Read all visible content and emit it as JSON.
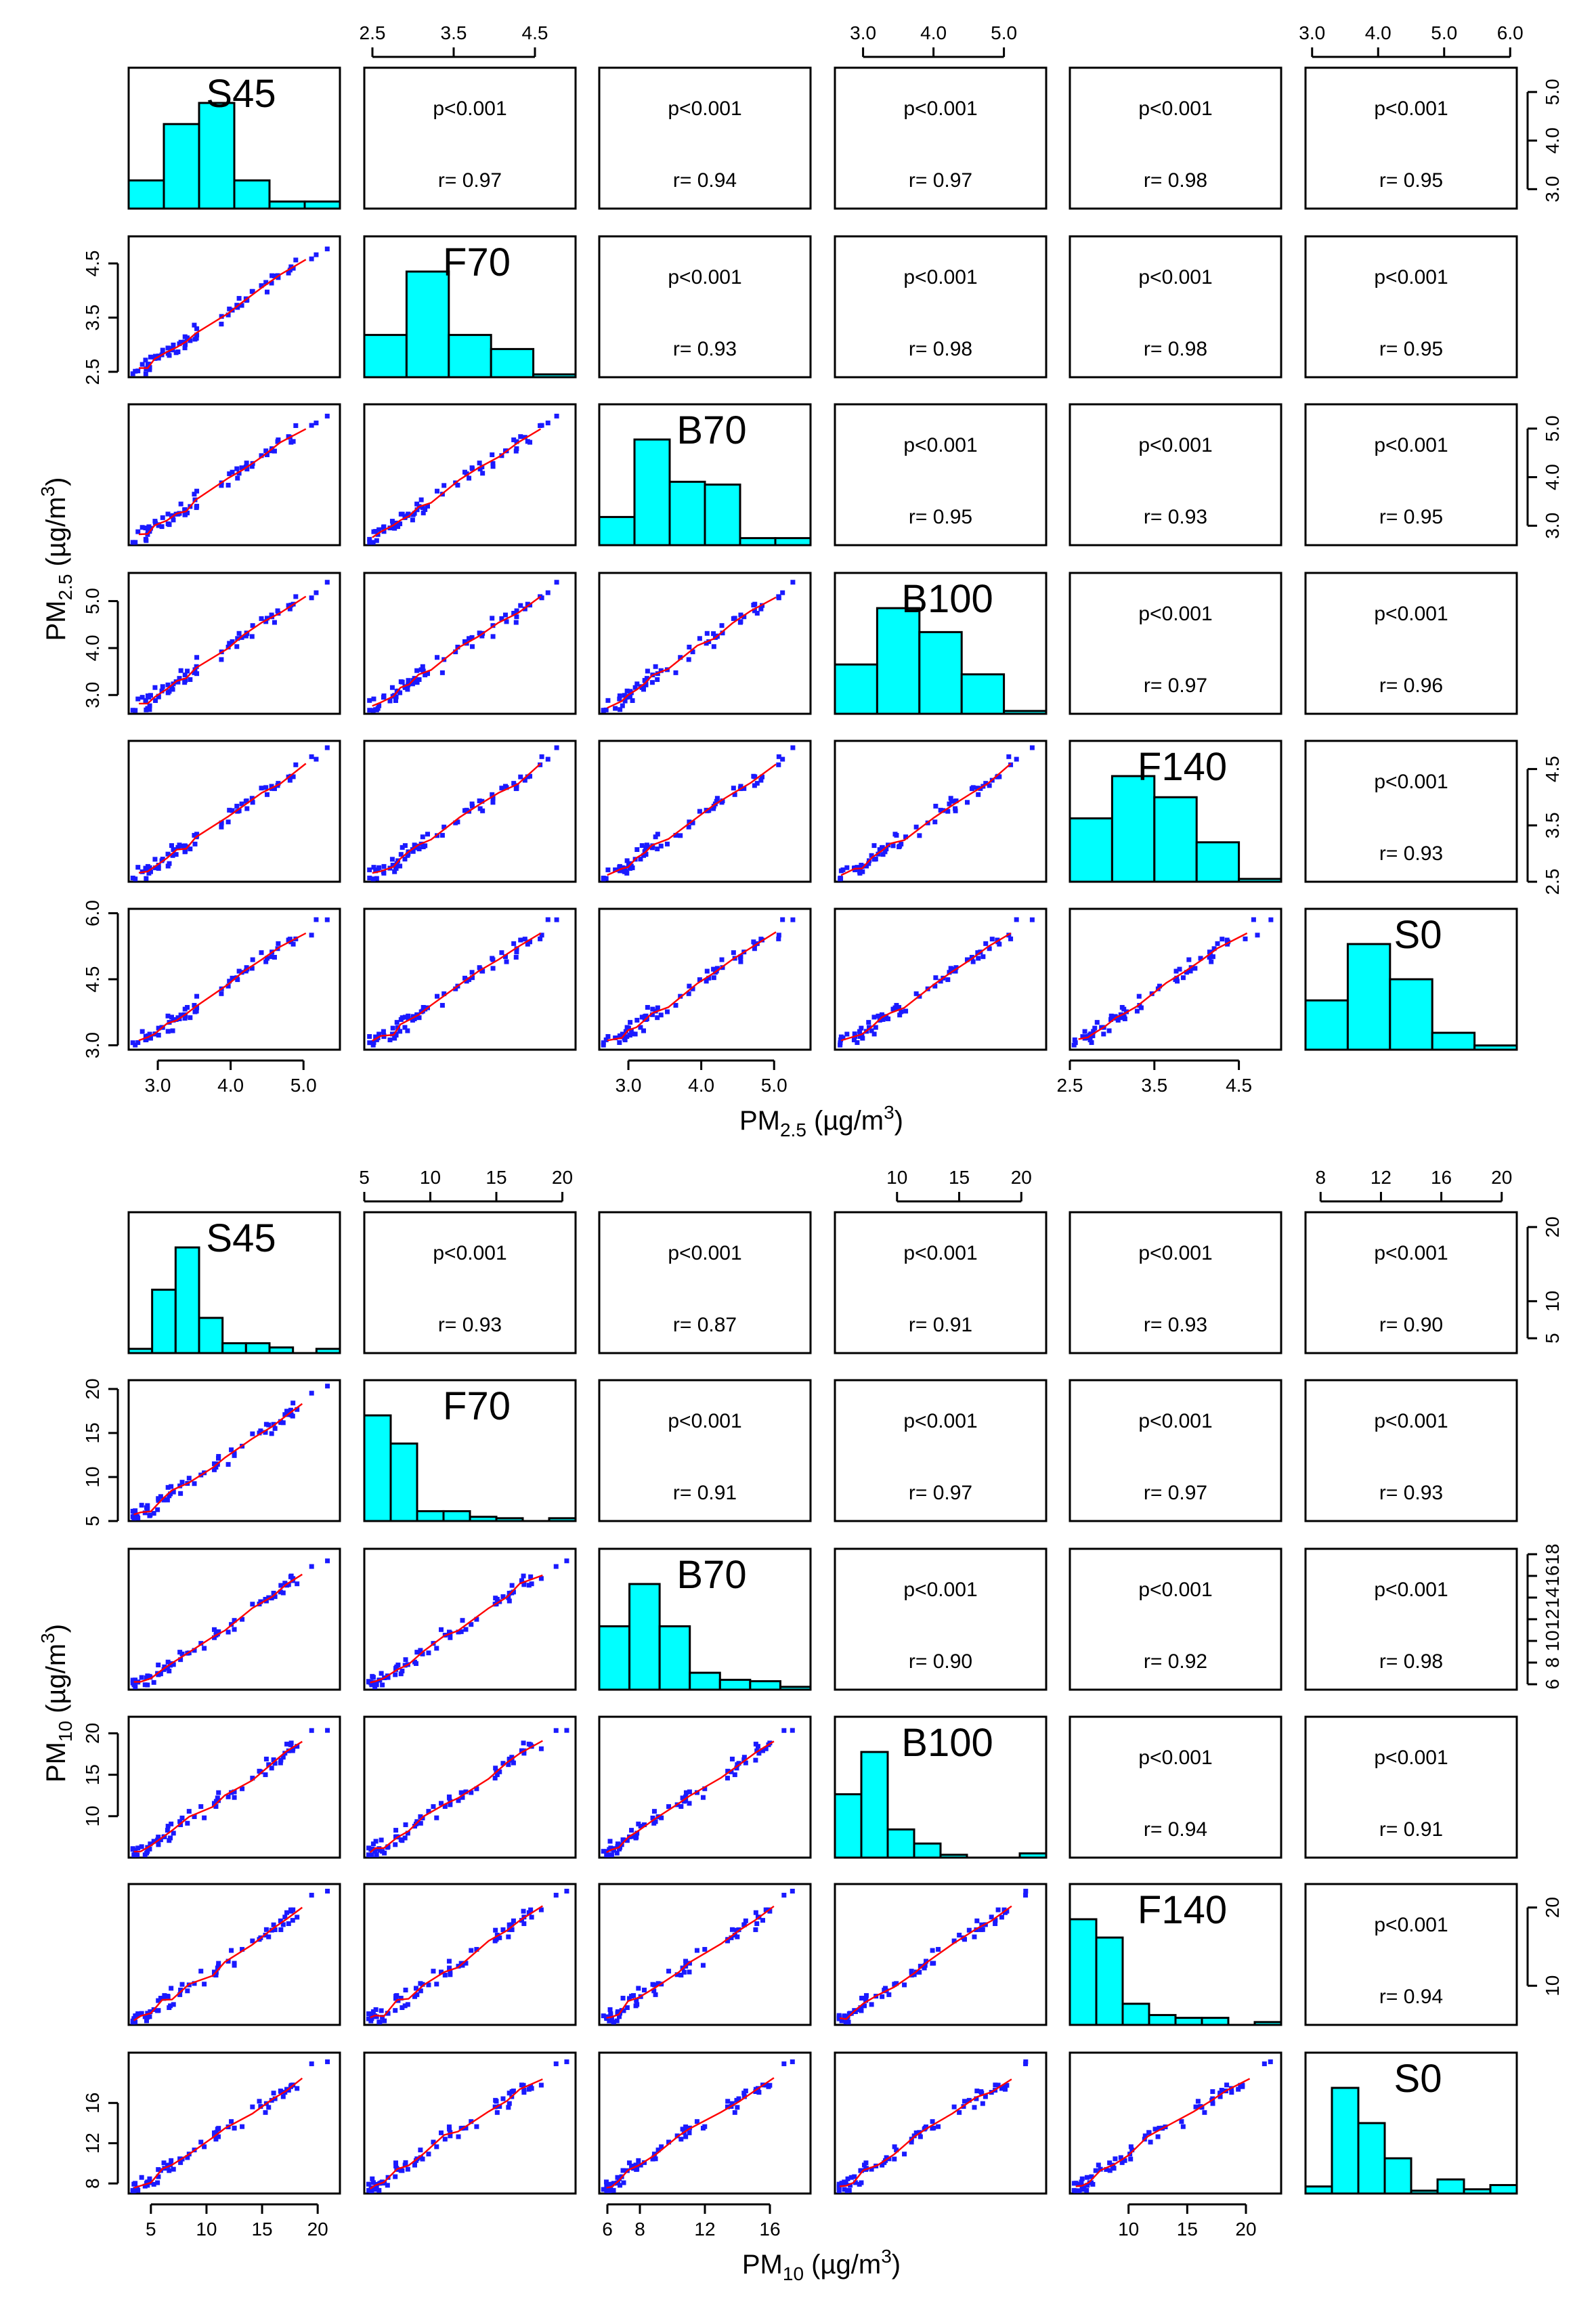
{
  "chart_data": [
    {
      "type": "scatter-matrix",
      "title": "",
      "variables": [
        "S45",
        "F70",
        "B70",
        "B100",
        "F140",
        "S0"
      ],
      "xlabel": "PM2.5 (µg/m3)",
      "ylabel": "PM2.5 (µg/m3)",
      "label_parts": {
        "base": "PM",
        "sub": "2.5",
        "units": "  (µg/m",
        "sup": "3",
        "close": ")"
      },
      "ranges": [
        [
          2.6,
          5.5
        ],
        [
          2.4,
          5.0
        ],
        [
          2.6,
          5.5
        ],
        [
          2.6,
          5.6
        ],
        [
          2.5,
          5.0
        ],
        [
          2.9,
          6.1
        ]
      ],
      "ticks": [
        [
          3.0,
          4.0,
          5.0
        ],
        [
          2.5,
          3.5,
          4.5
        ],
        [
          3.0,
          4.0,
          5.0
        ],
        [
          3.0,
          4.0,
          5.0
        ],
        [
          2.5,
          3.5,
          4.5
        ],
        [
          3.0,
          4.5,
          6.0
        ]
      ],
      "top_ticks": {
        "F70": [
          2.5,
          3.5,
          4.5
        ],
        "B100": [
          3.0,
          4.0,
          5.0
        ],
        "S0": [
          3.0,
          4.0,
          5.0,
          6.0
        ]
      },
      "p_text": "p<0.001",
      "correlations": [
        {
          "row": "S45",
          "col": "F70",
          "p": "p<0.001",
          "r": "r= 0.97"
        },
        {
          "row": "S45",
          "col": "B70",
          "p": "p<0.001",
          "r": "r= 0.94"
        },
        {
          "row": "S45",
          "col": "B100",
          "p": "p<0.001",
          "r": "r= 0.97"
        },
        {
          "row": "S45",
          "col": "F140",
          "p": "p<0.001",
          "r": "r= 0.98"
        },
        {
          "row": "S45",
          "col": "S0",
          "p": "p<0.001",
          "r": "r= 0.95"
        },
        {
          "row": "F70",
          "col": "B70",
          "p": "p<0.001",
          "r": "r= 0.93"
        },
        {
          "row": "F70",
          "col": "B100",
          "p": "p<0.001",
          "r": "r= 0.98"
        },
        {
          "row": "F70",
          "col": "F140",
          "p": "p<0.001",
          "r": "r= 0.98"
        },
        {
          "row": "F70",
          "col": "S0",
          "p": "p<0.001",
          "r": "r= 0.95"
        },
        {
          "row": "B70",
          "col": "B100",
          "p": "p<0.001",
          "r": "r= 0.95"
        },
        {
          "row": "B70",
          "col": "F140",
          "p": "p<0.001",
          "r": "r= 0.93"
        },
        {
          "row": "B70",
          "col": "S0",
          "p": "p<0.001",
          "r": "r= 0.95"
        },
        {
          "row": "B100",
          "col": "F140",
          "p": "p<0.001",
          "r": "r= 0.97"
        },
        {
          "row": "B100",
          "col": "S0",
          "p": "p<0.001",
          "r": "r= 0.96"
        },
        {
          "row": "F140",
          "col": "S0",
          "p": "p<0.001",
          "r": "r= 0.93"
        }
      ],
      "histograms": {
        "S45": [
          0.2,
          0.6,
          0.75,
          0.2,
          0.05,
          0.05
        ],
        "F70": [
          0.3,
          0.75,
          0.3,
          0.2,
          0.02
        ],
        "B70": [
          0.2,
          0.75,
          0.45,
          0.43,
          0.05,
          0.05
        ],
        "B100": [
          0.35,
          0.75,
          0.58,
          0.28,
          0.02
        ],
        "F140": [
          0.45,
          0.75,
          0.6,
          0.28,
          0.02
        ],
        "S0": [
          0.35,
          0.75,
          0.5,
          0.12,
          0.03
        ]
      }
    },
    {
      "type": "scatter-matrix",
      "title": "",
      "variables": [
        "S45",
        "F70",
        "B70",
        "B100",
        "F140",
        "S0"
      ],
      "xlabel": "PM10 (µg/m3)",
      "ylabel": "PM10 (µg/m3)",
      "label_parts": {
        "base": "PM",
        "sub": "10",
        "units": "  (µg/m",
        "sup": "3",
        "close": ")"
      },
      "ranges": [
        [
          3,
          22
        ],
        [
          5,
          21
        ],
        [
          5.5,
          18.5
        ],
        [
          5,
          22
        ],
        [
          5,
          23
        ],
        [
          7,
          21
        ]
      ],
      "ticks": [
        [
          5,
          10,
          15,
          20
        ],
        [
          5,
          10,
          15,
          20
        ],
        [
          6,
          8,
          10,
          12,
          14,
          16,
          18
        ],
        [
          10,
          15,
          20
        ],
        [
          10,
          20
        ],
        [
          8,
          12,
          16,
          20
        ]
      ],
      "top_ticks": {
        "F70": [
          5,
          10,
          15,
          20
        ],
        "B100": [
          10,
          15,
          20
        ],
        "S0": [
          8,
          12,
          16,
          20
        ]
      },
      "bottom_ticks": {
        "S45": [
          5,
          10,
          15,
          20
        ],
        "B70": [
          6,
          8,
          12,
          16
        ],
        "F140": [
          10,
          15,
          20
        ]
      },
      "left_ticks": {
        "F70": [
          5,
          10,
          15,
          20
        ],
        "B100": [
          10,
          15,
          20
        ],
        "S0": [
          8,
          12,
          16
        ]
      },
      "right_ticks": {
        "S45": [
          5,
          10,
          20
        ],
        "B70": [
          6,
          8,
          10,
          12,
          14,
          16,
          18
        ],
        "F140": [
          10,
          20
        ]
      },
      "p_text": "p<0.001",
      "correlations": [
        {
          "row": "S45",
          "col": "F70",
          "p": "p<0.001",
          "r": "r= 0.93"
        },
        {
          "row": "S45",
          "col": "B70",
          "p": "p<0.001",
          "r": "r= 0.87"
        },
        {
          "row": "S45",
          "col": "B100",
          "p": "p<0.001",
          "r": "r= 0.91"
        },
        {
          "row": "S45",
          "col": "F140",
          "p": "p<0.001",
          "r": "r= 0.93"
        },
        {
          "row": "S45",
          "col": "S0",
          "p": "p<0.001",
          "r": "r= 0.90"
        },
        {
          "row": "F70",
          "col": "B70",
          "p": "p<0.001",
          "r": "r= 0.91"
        },
        {
          "row": "F70",
          "col": "B100",
          "p": "p<0.001",
          "r": "r= 0.97"
        },
        {
          "row": "F70",
          "col": "F140",
          "p": "p<0.001",
          "r": "r= 0.97"
        },
        {
          "row": "F70",
          "col": "S0",
          "p": "p<0.001",
          "r": "r= 0.93"
        },
        {
          "row": "B70",
          "col": "B100",
          "p": "p<0.001",
          "r": "r= 0.90"
        },
        {
          "row": "B70",
          "col": "F140",
          "p": "p<0.001",
          "r": "r= 0.92"
        },
        {
          "row": "B70",
          "col": "S0",
          "p": "p<0.001",
          "r": "r= 0.98"
        },
        {
          "row": "B100",
          "col": "F140",
          "p": "p<0.001",
          "r": "r= 0.94"
        },
        {
          "row": "B100",
          "col": "S0",
          "p": "p<0.001",
          "r": "r= 0.91"
        },
        {
          "row": "F140",
          "col": "S0",
          "p": "p<0.001",
          "r": "r= 0.94"
        }
      ],
      "histograms": {
        "S45": [
          0.03,
          0.45,
          0.75,
          0.25,
          0.07,
          0.07,
          0.04,
          0.0,
          0.03
        ],
        "F70": [
          0.75,
          0.55,
          0.07,
          0.07,
          0.03,
          0.02,
          0.0,
          0.02
        ],
        "B70": [
          0.45,
          0.75,
          0.45,
          0.12,
          0.07,
          0.06,
          0.02
        ],
        "B100": [
          0.45,
          0.75,
          0.2,
          0.1,
          0.02,
          0.0,
          0.0,
          0.03
        ],
        "F140": [
          0.75,
          0.62,
          0.15,
          0.07,
          0.05,
          0.05,
          0.0,
          0.02
        ],
        "S0": [
          0.05,
          0.75,
          0.5,
          0.25,
          0.02,
          0.1,
          0.03,
          0.06
        ]
      }
    }
  ]
}
